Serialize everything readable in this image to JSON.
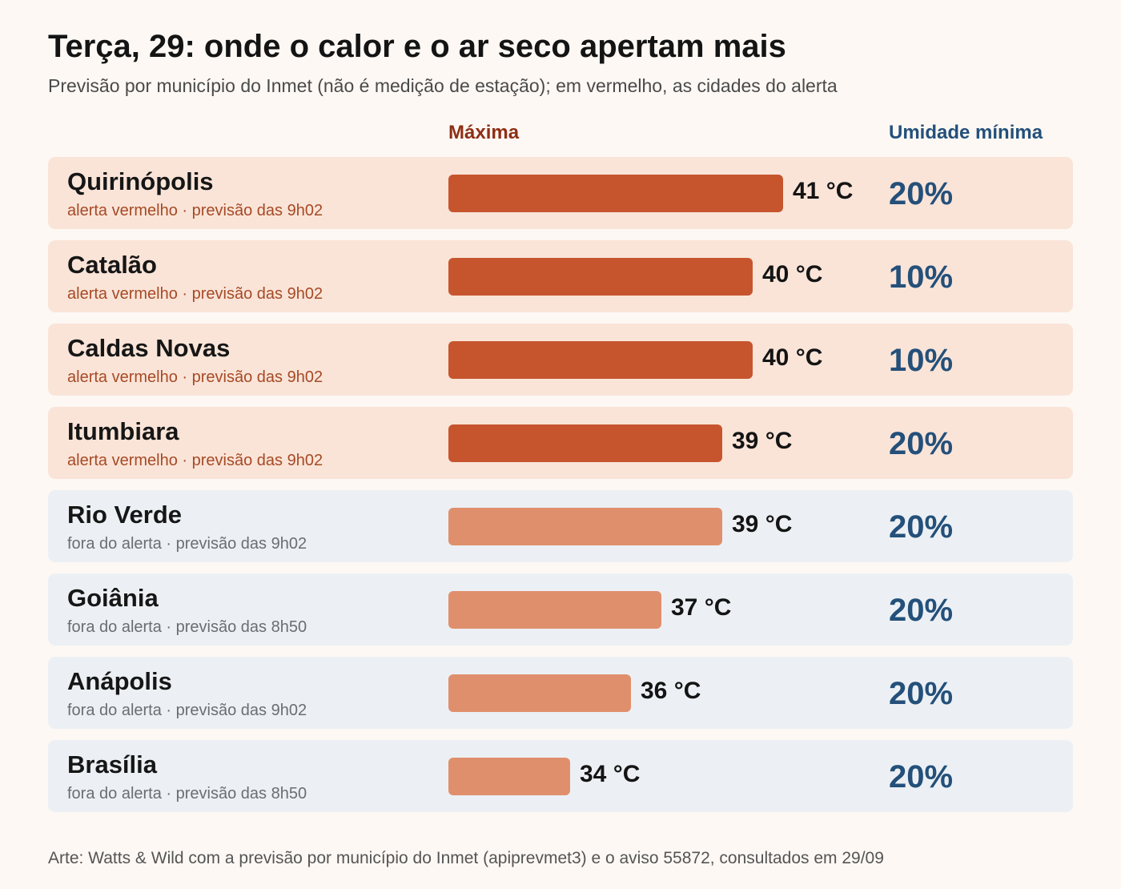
{
  "title": "Terça, 29: onde o calor e o ar seco apertam mais",
  "subtitle": "Previsão por município do Inmet (não é medição de estação); em vermelho, as cidades do alerta",
  "columns": {
    "max_label": "Máxima",
    "humidity_label": "Umidade mínima"
  },
  "colors": {
    "alert_bar": "#c6552e",
    "normal_bar": "#e08f6d",
    "alert_row_bg": "#fae4d8",
    "normal_row_bg": "#ecf0f4",
    "humidity_text": "#24507a"
  },
  "footer": "Arte: Watts & Wild com a previsão por município do Inmet (apiprevmet3) e o aviso 55872, consultados em 29/09",
  "chart_data": {
    "type": "bar",
    "orientation": "horizontal",
    "categories": [
      "Quirinópolis",
      "Catalão",
      "Caldas Novas",
      "Itumbiara",
      "Rio Verde",
      "Goiânia",
      "Anápolis",
      "Brasília"
    ],
    "series": [
      {
        "name": "Máxima",
        "unit": "°C",
        "values": [
          41,
          40,
          40,
          39,
          39,
          37,
          36,
          34
        ]
      },
      {
        "name": "Umidade mínima",
        "unit": "%",
        "values": [
          20,
          10,
          10,
          20,
          20,
          20,
          20,
          20
        ]
      }
    ],
    "rows": [
      {
        "city": "Quirinópolis",
        "note": "alerta vermelho · previsão das 9h02",
        "alert": true,
        "max": 41,
        "max_label": "41 °C",
        "humidity": 20,
        "humidity_label": "20%"
      },
      {
        "city": "Catalão",
        "note": "alerta vermelho · previsão das 9h02",
        "alert": true,
        "max": 40,
        "max_label": "40 °C",
        "humidity": 10,
        "humidity_label": "10%"
      },
      {
        "city": "Caldas Novas",
        "note": "alerta vermelho · previsão das 9h02",
        "alert": true,
        "max": 40,
        "max_label": "40 °C",
        "humidity": 10,
        "humidity_label": "10%"
      },
      {
        "city": "Itumbiara",
        "note": "alerta vermelho · previsão das 9h02",
        "alert": true,
        "max": 39,
        "max_label": "39 °C",
        "humidity": 20,
        "humidity_label": "20%"
      },
      {
        "city": "Rio Verde",
        "note": "fora do alerta · previsão das 9h02",
        "alert": false,
        "max": 39,
        "max_label": "39 °C",
        "humidity": 20,
        "humidity_label": "20%"
      },
      {
        "city": "Goiânia",
        "note": "fora do alerta · previsão das 8h50",
        "alert": false,
        "max": 37,
        "max_label": "37 °C",
        "humidity": 20,
        "humidity_label": "20%"
      },
      {
        "city": "Anápolis",
        "note": "fora do alerta · previsão das 9h02",
        "alert": false,
        "max": 36,
        "max_label": "36 °C",
        "humidity": 20,
        "humidity_label": "20%"
      },
      {
        "city": "Brasília",
        "note": "fora do alerta · previsão das 8h50",
        "alert": false,
        "max": 34,
        "max_label": "34 °C",
        "humidity": 20,
        "humidity_label": "20%"
      }
    ]
  }
}
